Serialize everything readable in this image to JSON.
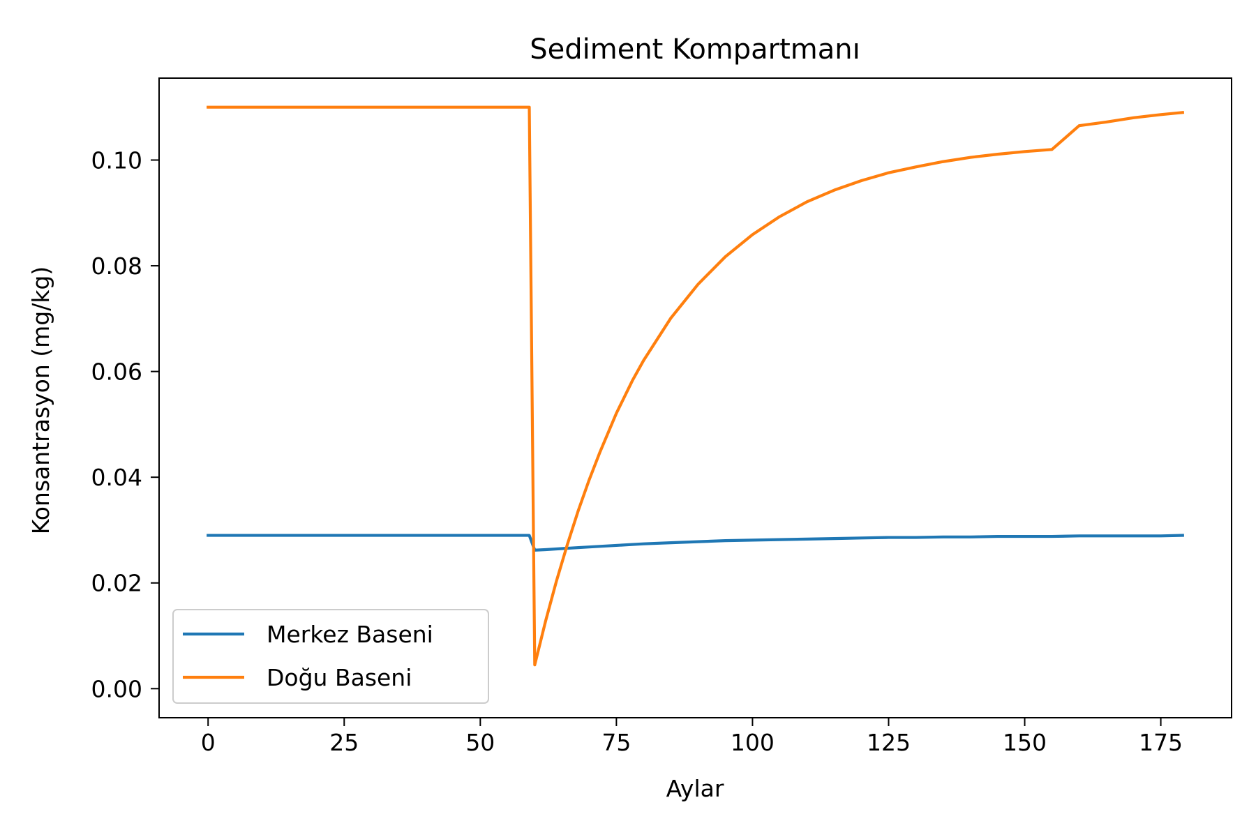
{
  "chart_data": {
    "type": "line",
    "title": "Sediment Kompartmanı",
    "xlabel": "Aylar",
    "ylabel": "Konsantrasyon (mg/kg)",
    "xlim": [
      -9,
      188
    ],
    "ylim": [
      -0.0055,
      0.1155
    ],
    "xticks": [
      0,
      25,
      50,
      75,
      100,
      125,
      150,
      175
    ],
    "xtick_labels": [
      "0",
      "25",
      "50",
      "75",
      "100",
      "125",
      "150",
      "175"
    ],
    "yticks": [
      0.0,
      0.02,
      0.04,
      0.06,
      0.08,
      0.1
    ],
    "ytick_labels": [
      "0.00",
      "0.02",
      "0.04",
      "0.06",
      "0.08",
      "0.10"
    ],
    "grid": false,
    "legend": {
      "position": "lower-left"
    },
    "series": [
      {
        "name": "Merkez Baseni",
        "color": "#1f77b4",
        "x": [
          0,
          59,
          60,
          62,
          65,
          70,
          75,
          80,
          85,
          90,
          95,
          100,
          105,
          110,
          115,
          120,
          125,
          130,
          135,
          140,
          145,
          150,
          155,
          160,
          165,
          170,
          175,
          179
        ],
        "y": [
          0.029,
          0.029,
          0.0262,
          0.0263,
          0.0265,
          0.0268,
          0.0271,
          0.0274,
          0.0276,
          0.0278,
          0.028,
          0.0281,
          0.0282,
          0.0283,
          0.0284,
          0.0285,
          0.0286,
          0.0286,
          0.0287,
          0.0287,
          0.0288,
          0.0288,
          0.0288,
          0.0289,
          0.0289,
          0.0289,
          0.0289,
          0.029
        ]
      },
      {
        "name": "Doğu Baseni",
        "color": "#ff7f0e",
        "x": [
          0,
          59,
          60,
          62,
          64,
          66,
          68,
          70,
          72,
          75,
          78,
          80,
          85,
          90,
          95,
          100,
          105,
          110,
          115,
          120,
          125,
          130,
          135,
          140,
          145,
          150,
          155,
          160,
          165,
          170,
          175,
          179
        ],
        "y": [
          0.11,
          0.11,
          0.0045,
          0.0128,
          0.0204,
          0.0273,
          0.0337,
          0.0395,
          0.0448,
          0.0521,
          0.0584,
          0.0621,
          0.0701,
          0.0765,
          0.0817,
          0.0859,
          0.0893,
          0.0921,
          0.0943,
          0.0961,
          0.0976,
          0.0987,
          0.0997,
          0.1005,
          0.1011,
          0.1016,
          0.102,
          0.1065,
          0.1072,
          0.108,
          0.1086,
          0.109
        ]
      }
    ]
  }
}
